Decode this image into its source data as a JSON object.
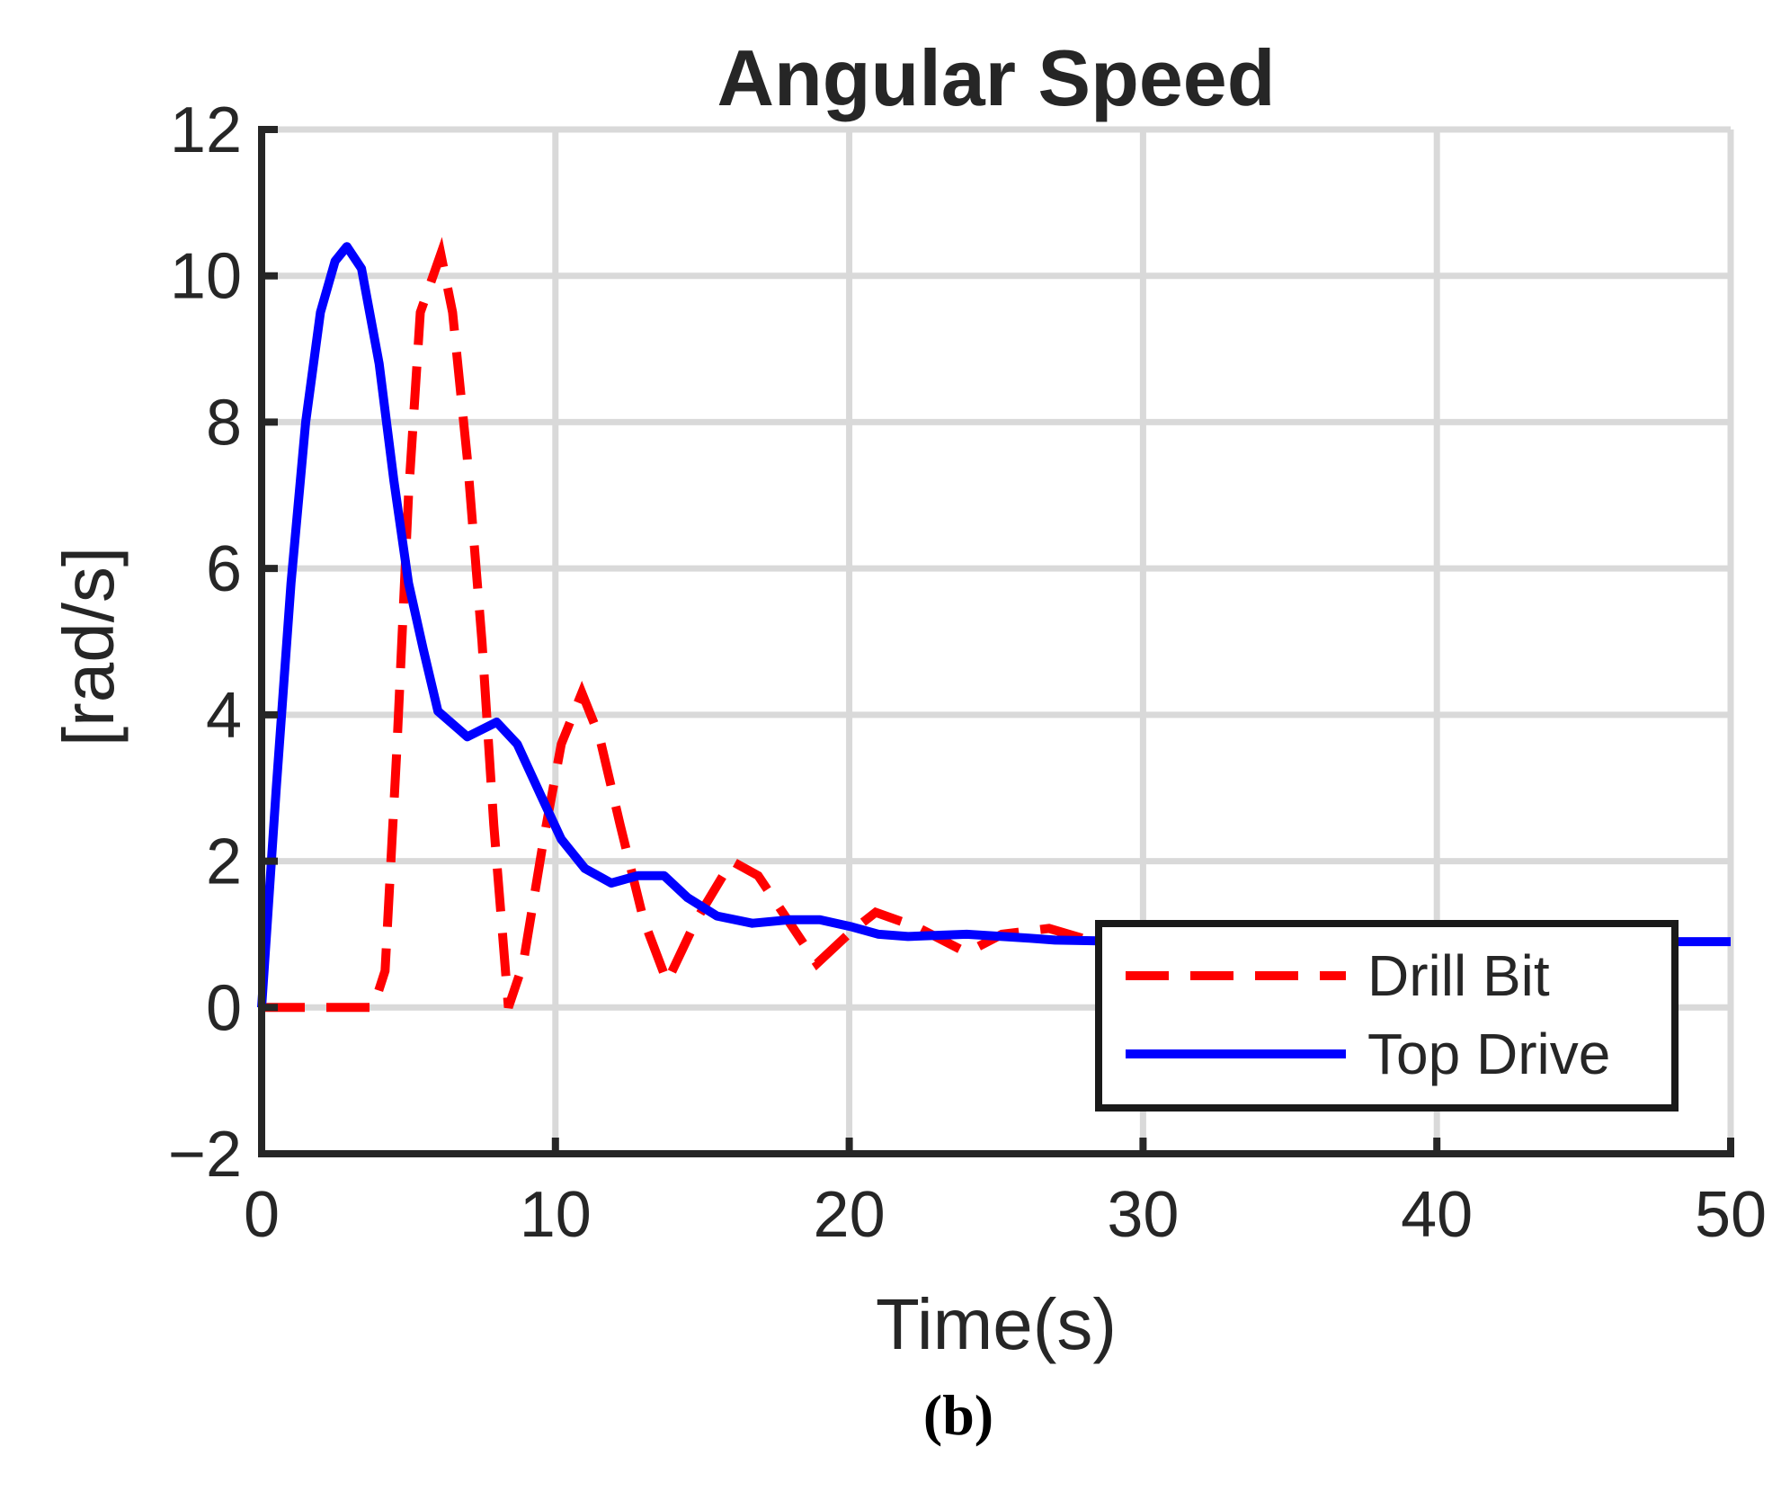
{
  "chart_data": {
    "type": "line",
    "title": "Angular Speed",
    "xlabel": "Time(s)",
    "ylabel": "[rad/s]",
    "xlim": [
      0,
      50
    ],
    "ylim": [
      -2,
      12
    ],
    "xticks": [
      0,
      10,
      20,
      30,
      40,
      50
    ],
    "xtick_labels": [
      "0",
      "10",
      "20",
      "30",
      "40",
      "50"
    ],
    "yticks": [
      -2,
      0,
      2,
      4,
      6,
      8,
      10,
      12
    ],
    "ytick_labels": [
      "−2",
      "0",
      "2",
      "4",
      "6",
      "8",
      "10",
      "12"
    ],
    "grid": true,
    "legend_position": "bottom-right",
    "series": [
      {
        "name": "Drill Bit",
        "color": "#ff0000",
        "style": "dashed",
        "points": [
          [
            0,
            0
          ],
          [
            3.8,
            0
          ],
          [
            4.2,
            0.5
          ],
          [
            4.6,
            3.5
          ],
          [
            5.0,
            7.0
          ],
          [
            5.4,
            9.5
          ],
          [
            6.1,
            10.3
          ],
          [
            6.5,
            9.5
          ],
          [
            7.0,
            7.5
          ],
          [
            7.5,
            5.0
          ],
          [
            7.9,
            2.5
          ],
          [
            8.4,
            0.0
          ],
          [
            8.9,
            0.6
          ],
          [
            9.6,
            2.3
          ],
          [
            10.2,
            3.6
          ],
          [
            10.9,
            4.3
          ],
          [
            11.5,
            3.7
          ],
          [
            12.2,
            2.5
          ],
          [
            13.0,
            1.2
          ],
          [
            13.8,
            0.35
          ],
          [
            14.8,
            1.2
          ],
          [
            16.0,
            2.0
          ],
          [
            16.9,
            1.8
          ],
          [
            17.9,
            1.2
          ],
          [
            18.9,
            0.6
          ],
          [
            20.1,
            1.05
          ],
          [
            20.9,
            1.3
          ],
          [
            22.3,
            1.1
          ],
          [
            24.0,
            0.75
          ],
          [
            25.2,
            1.0
          ],
          [
            26.8,
            1.08
          ],
          [
            28.5,
            0.88
          ],
          [
            30.0,
            0.9
          ]
        ]
      },
      {
        "name": "Top Drive",
        "color": "#0000ff",
        "style": "solid",
        "points": [
          [
            0,
            0
          ],
          [
            0.5,
            3.0
          ],
          [
            1.0,
            5.8
          ],
          [
            1.5,
            8.0
          ],
          [
            2.0,
            9.5
          ],
          [
            2.5,
            10.2
          ],
          [
            2.9,
            10.4
          ],
          [
            3.4,
            10.1
          ],
          [
            4.0,
            8.8
          ],
          [
            4.5,
            7.2
          ],
          [
            5.0,
            5.8
          ],
          [
            5.5,
            4.9
          ],
          [
            6.0,
            4.05
          ],
          [
            7.0,
            3.7
          ],
          [
            8.0,
            3.9
          ],
          [
            8.7,
            3.6
          ],
          [
            9.5,
            2.9
          ],
          [
            10.2,
            2.3
          ],
          [
            11.0,
            1.9
          ],
          [
            11.9,
            1.7
          ],
          [
            12.8,
            1.8
          ],
          [
            13.7,
            1.8
          ],
          [
            14.5,
            1.5
          ],
          [
            15.5,
            1.25
          ],
          [
            16.7,
            1.15
          ],
          [
            18.0,
            1.2
          ],
          [
            19.0,
            1.2
          ],
          [
            20.1,
            1.1
          ],
          [
            21.0,
            1.0
          ],
          [
            22.0,
            0.97
          ],
          [
            24.0,
            1.0
          ],
          [
            26.0,
            0.95
          ],
          [
            27.0,
            0.92
          ],
          [
            30.0,
            0.9
          ],
          [
            40.0,
            0.9
          ],
          [
            50.0,
            0.9
          ]
        ]
      }
    ]
  },
  "caption": "(b)"
}
